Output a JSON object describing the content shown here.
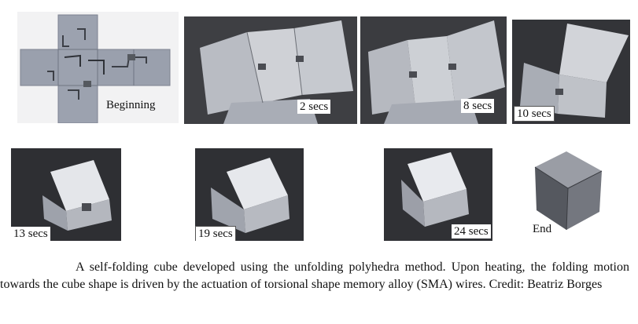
{
  "figure": {
    "panels": [
      {
        "stage": "start",
        "label": "Beginning"
      },
      {
        "stage": "t2",
        "label": "2 secs"
      },
      {
        "stage": "t8",
        "label": "8 secs"
      },
      {
        "stage": "t10",
        "label": "10 secs"
      },
      {
        "stage": "t13",
        "label": "13 secs"
      },
      {
        "stage": "t19",
        "label": "19 secs"
      },
      {
        "stage": "t24",
        "label": "24 secs"
      },
      {
        "stage": "end",
        "label": "End"
      }
    ],
    "caption": "A self-folding cube developed using the unfolding polyhedra method. Upon heating, the folding motion towards the cube shape is driven by the actuation of torsional shape memory alloy (SMA) wires. Credit: Beatriz Borges"
  }
}
